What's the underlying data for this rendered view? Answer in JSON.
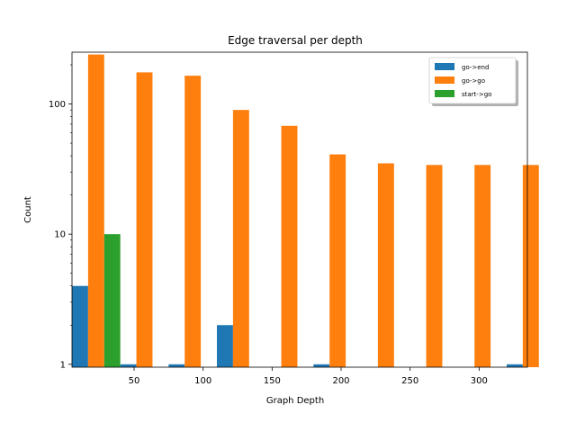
{
  "chart_data": {
    "type": "bar",
    "title": "Edge traversal per depth",
    "xlabel": "Graph Depth",
    "ylabel": "Count",
    "yscale": "log",
    "ylim": [
      0.95,
      250
    ],
    "xlim": [
      5,
      335
    ],
    "x_ticks": [
      50,
      100,
      150,
      200,
      250,
      300
    ],
    "y_ticks": [
      1,
      10,
      100
    ],
    "grid": false,
    "legend_placement": "top-right",
    "bin_width": 35,
    "bin_starts": [
      5,
      40,
      75,
      110,
      145,
      180,
      215,
      250,
      285,
      320
    ],
    "series": [
      {
        "name": "go->end",
        "color": "#1f77b4",
        "values": [
          4,
          1,
          1,
          2,
          0,
          1,
          0,
          0,
          0,
          1
        ]
      },
      {
        "name": "go->go",
        "color": "#ff7f0e",
        "values": [
          240,
          175,
          165,
          90,
          68,
          41,
          35,
          34,
          34,
          34
        ]
      },
      {
        "name": "start->go",
        "color": "#2ca02c",
        "values": [
          10,
          0,
          0,
          0,
          0,
          0,
          0,
          0,
          0,
          0
        ]
      }
    ]
  }
}
